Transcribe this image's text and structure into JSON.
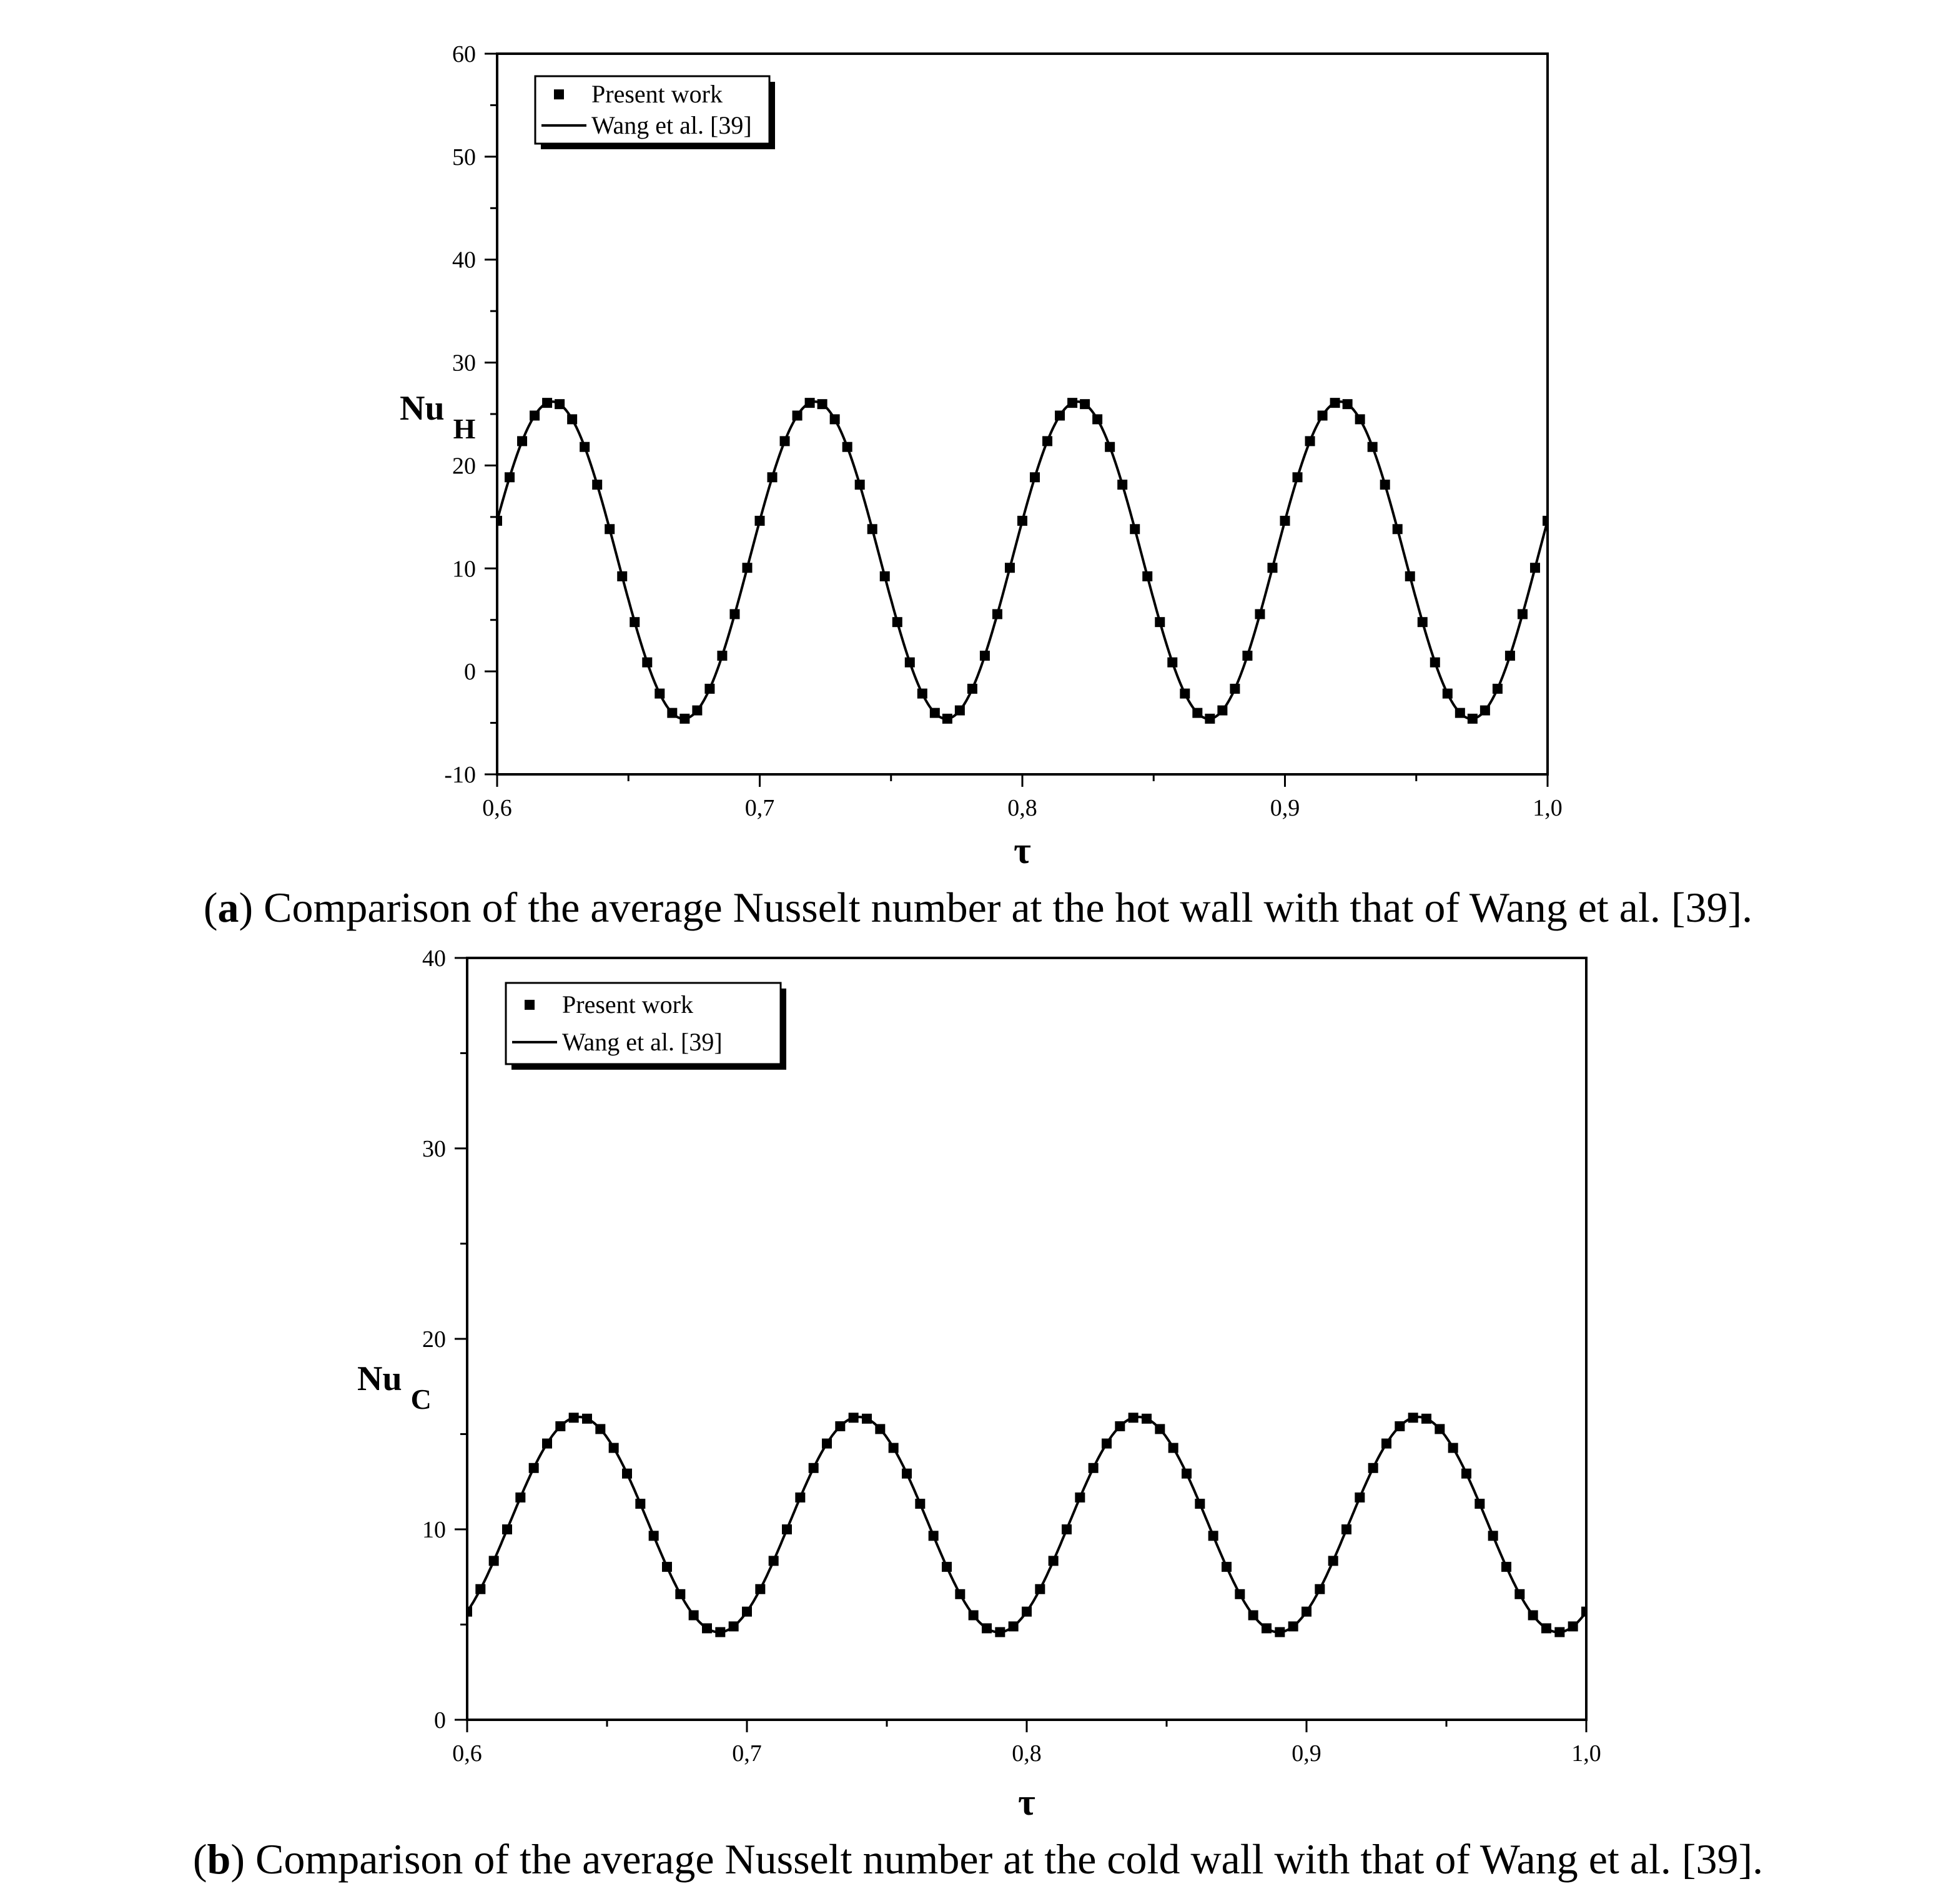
{
  "chart_data": [
    {
      "type": "line",
      "panel": "a",
      "xlabel": "τ",
      "ylabel": "Nu",
      "ylabel_sub": "H",
      "xlim": [
        0.6,
        1.0
      ],
      "ylim": [
        -10,
        60
      ],
      "xticks": [
        "0,6",
        "0,7",
        "0,8",
        "0,9",
        "1,0"
      ],
      "yticks": [
        "-10",
        "0",
        "10",
        "20",
        "30",
        "40",
        "50",
        "60"
      ],
      "legend_position": "top-left",
      "series": [
        {
          "name": "Present work",
          "style": "markers",
          "marker": "square",
          "color": "#000000",
          "model": {
            "mean": 10.8,
            "amplitude": 15.4,
            "period": 0.1,
            "peak_at": 0.621
          }
        },
        {
          "name": "Wang et al. [39]",
          "style": "line",
          "color": "#000000",
          "model": {
            "mean": 10.8,
            "amplitude": 15.4,
            "period": 0.1,
            "peak_at": 0.621
          }
        }
      ]
    },
    {
      "type": "line",
      "panel": "b",
      "xlabel": "τ",
      "ylabel": "Nu",
      "ylabel_sub": "C",
      "xlim": [
        0.6,
        1.0
      ],
      "ylim": [
        0,
        40
      ],
      "xticks": [
        "0,6",
        "0,7",
        "0,8",
        "0,9",
        "1,0"
      ],
      "yticks": [
        "0",
        "10",
        "20",
        "30",
        "40"
      ],
      "legend_position": "top-left",
      "series": [
        {
          "name": "Present work",
          "style": "markers",
          "marker": "square",
          "color": "#000000",
          "model": {
            "mean": 10.25,
            "amplitude": 5.65,
            "period": 0.1,
            "peak_at": 0.64
          }
        },
        {
          "name": "Wang et al. [39]",
          "style": "line",
          "color": "#000000",
          "model": {
            "mean": 10.25,
            "amplitude": 5.65,
            "period": 0.1,
            "peak_at": 0.64
          }
        }
      ]
    }
  ],
  "captions": {
    "a_label": "a",
    "a_text": " Comparison of the average Nusselt number at the hot wall with that of Wang et al. [39].",
    "b_label": "b",
    "b_text": " Comparison of the average Nusselt number at the cold wall with that of Wang et al. [39]."
  }
}
